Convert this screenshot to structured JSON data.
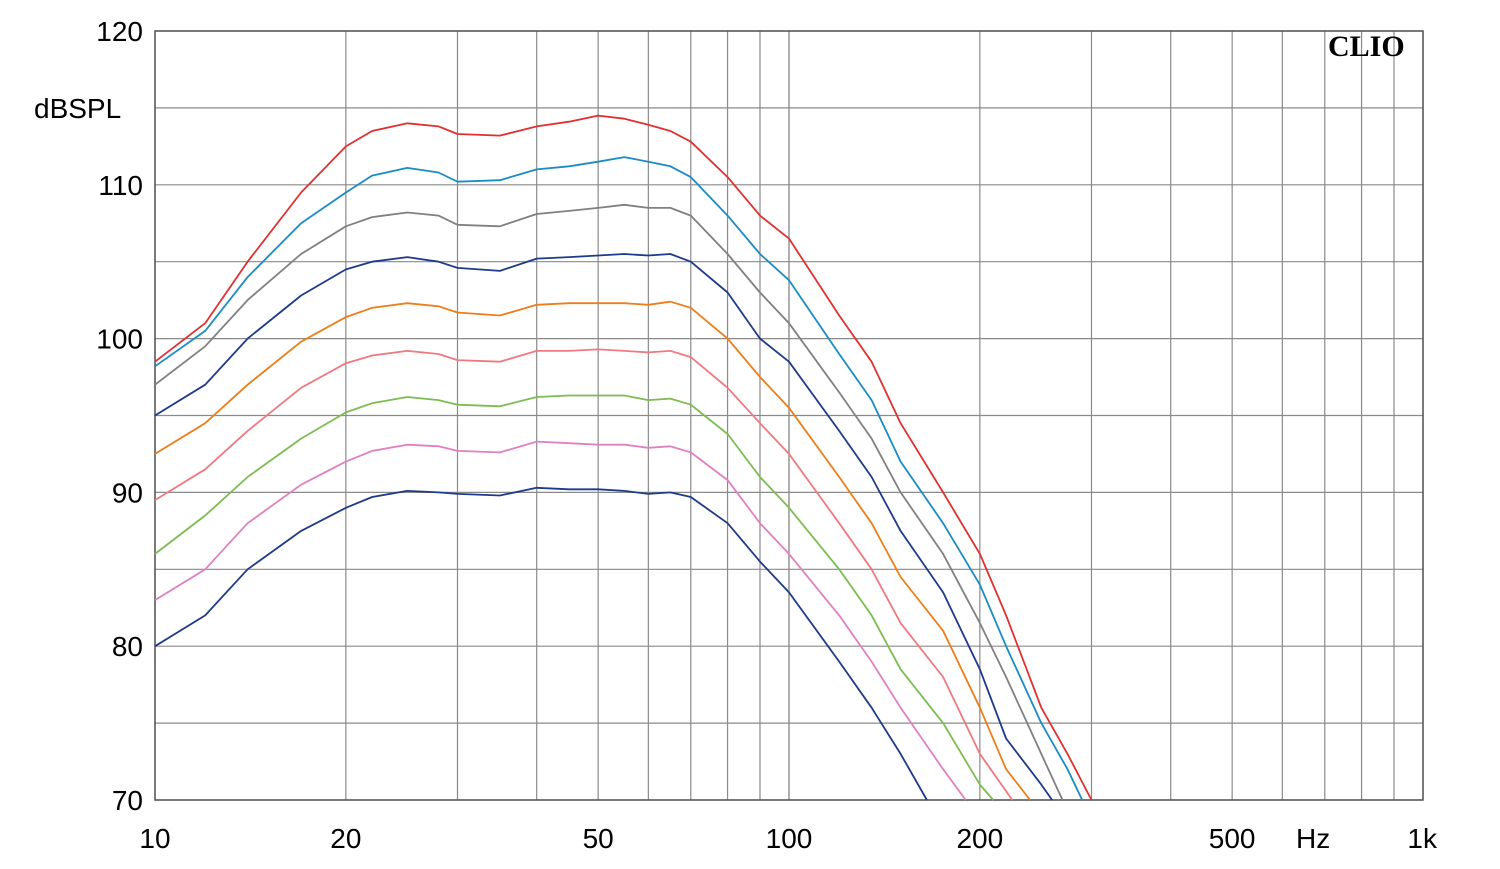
{
  "chart_data": {
    "type": "line",
    "xscale": "log",
    "xlim": [
      10,
      1000
    ],
    "ylim": [
      70,
      120
    ],
    "grid": true,
    "ylabel": "dBSPL",
    "xunit": "Hz",
    "brand": "CLIO",
    "y_ticks": [
      70,
      80,
      90,
      100,
      110,
      120
    ],
    "x_tick_labels": [
      {
        "value": 10,
        "label": "10"
      },
      {
        "value": 20,
        "label": "20"
      },
      {
        "value": 50,
        "label": "50"
      },
      {
        "value": 100,
        "label": "100"
      },
      {
        "value": 200,
        "label": "200"
      },
      {
        "value": 500,
        "label": "500"
      },
      {
        "value": 1000,
        "label": "1k"
      }
    ],
    "series": [
      {
        "color": "#e03030",
        "x": [
          10,
          12,
          14,
          17,
          20,
          22,
          25,
          28,
          30,
          35,
          40,
          45,
          50,
          55,
          60,
          65,
          70,
          80,
          90,
          100,
          120,
          135,
          150,
          175,
          200,
          220,
          250,
          275,
          300
        ],
        "y": [
          98.5,
          101,
          105,
          109.5,
          112.5,
          113.5,
          114,
          113.8,
          113.3,
          113.2,
          113.8,
          114.1,
          114.5,
          114.3,
          113.9,
          113.5,
          112.8,
          110.5,
          108,
          106.5,
          101.5,
          98.5,
          94.5,
          90,
          86,
          82,
          76,
          73,
          70
        ]
      },
      {
        "color": "#1a8cc4",
        "x": [
          10,
          12,
          14,
          17,
          20,
          22,
          25,
          28,
          30,
          35,
          40,
          45,
          50,
          55,
          60,
          65,
          70,
          80,
          90,
          100,
          120,
          135,
          150,
          175,
          200,
          220,
          250,
          275,
          290
        ],
        "y": [
          98.2,
          100.5,
          104,
          107.5,
          109.5,
          110.6,
          111.1,
          110.8,
          110.2,
          110.3,
          111,
          111.2,
          111.5,
          111.8,
          111.5,
          111.2,
          110.5,
          108,
          105.5,
          103.8,
          99,
          96,
          92,
          88,
          84,
          80,
          75,
          72,
          70
        ]
      },
      {
        "color": "#808080",
        "x": [
          10,
          12,
          14,
          17,
          20,
          22,
          25,
          28,
          30,
          35,
          40,
          45,
          50,
          55,
          60,
          65,
          70,
          80,
          90,
          100,
          120,
          135,
          150,
          175,
          200,
          220,
          250,
          270
        ],
        "y": [
          97,
          99.5,
          102.5,
          105.5,
          107.3,
          107.9,
          108.2,
          108,
          107.4,
          107.3,
          108.1,
          108.3,
          108.5,
          108.7,
          108.5,
          108.5,
          108,
          105.5,
          103,
          101,
          96.5,
          93.5,
          90,
          86,
          81.5,
          78,
          73,
          70
        ]
      },
      {
        "color": "#1e3a8a",
        "x": [
          10,
          12,
          14,
          17,
          20,
          22,
          25,
          28,
          30,
          35,
          40,
          45,
          50,
          55,
          60,
          65,
          70,
          80,
          90,
          100,
          120,
          135,
          150,
          175,
          200,
          220,
          250,
          260
        ],
        "y": [
          95,
          97,
          100,
          102.8,
          104.5,
          105,
          105.3,
          105,
          104.6,
          104.4,
          105.2,
          105.3,
          105.4,
          105.5,
          105.4,
          105.5,
          105,
          103,
          100,
          98.5,
          94,
          91,
          87.5,
          83.5,
          78.5,
          74,
          71,
          70
        ]
      },
      {
        "color": "#ee7d1a",
        "x": [
          10,
          12,
          14,
          17,
          20,
          22,
          25,
          28,
          30,
          35,
          40,
          45,
          50,
          55,
          60,
          65,
          70,
          80,
          90,
          100,
          120,
          135,
          150,
          175,
          200,
          220,
          240
        ],
        "y": [
          92.5,
          94.5,
          97,
          99.8,
          101.4,
          102,
          102.3,
          102.1,
          101.7,
          101.5,
          102.2,
          102.3,
          102.3,
          102.3,
          102.2,
          102.4,
          102,
          100,
          97.5,
          95.5,
          91,
          88,
          84.5,
          81,
          76,
          72,
          70
        ]
      },
      {
        "color": "#f07880",
        "x": [
          10,
          12,
          14,
          17,
          20,
          22,
          25,
          28,
          30,
          35,
          40,
          45,
          50,
          55,
          60,
          65,
          70,
          80,
          90,
          100,
          120,
          135,
          150,
          175,
          200,
          225
        ],
        "y": [
          89.5,
          91.5,
          94,
          96.8,
          98.4,
          98.9,
          99.2,
          99,
          98.6,
          98.5,
          99.2,
          99.2,
          99.3,
          99.2,
          99.1,
          99.2,
          98.8,
          96.8,
          94.5,
          92.5,
          88,
          85,
          81.5,
          78,
          73,
          70
        ]
      },
      {
        "color": "#7cbc50",
        "x": [
          10,
          12,
          14,
          17,
          20,
          22,
          25,
          28,
          30,
          35,
          40,
          45,
          50,
          55,
          60,
          65,
          70,
          80,
          90,
          100,
          120,
          135,
          150,
          175,
          200,
          210
        ],
        "y": [
          86,
          88.5,
          91,
          93.5,
          95.2,
          95.8,
          96.2,
          96,
          95.7,
          95.6,
          96.2,
          96.3,
          96.3,
          96.3,
          96,
          96.1,
          95.7,
          93.8,
          91,
          89,
          85,
          82,
          78.5,
          75,
          71,
          70
        ]
      },
      {
        "color": "#e080c0",
        "x": [
          10,
          12,
          14,
          17,
          20,
          22,
          25,
          28,
          30,
          35,
          40,
          45,
          50,
          55,
          60,
          65,
          70,
          80,
          90,
          100,
          120,
          135,
          150,
          175,
          190
        ],
        "y": [
          83,
          85,
          88,
          90.5,
          92,
          92.7,
          93.1,
          93,
          92.7,
          92.6,
          93.3,
          93.2,
          93.1,
          93.1,
          92.9,
          93,
          92.6,
          90.8,
          88,
          86,
          82,
          79,
          76,
          72,
          70
        ]
      },
      {
        "color": "#1e3a8a",
        "x": [
          10,
          12,
          14,
          17,
          20,
          22,
          25,
          28,
          30,
          35,
          40,
          45,
          50,
          55,
          60,
          65,
          70,
          80,
          90,
          100,
          120,
          135,
          150,
          165
        ],
        "y": [
          80,
          82,
          85,
          87.5,
          89,
          89.7,
          90.1,
          90,
          89.9,
          89.8,
          90.3,
          90.2,
          90.2,
          90.1,
          89.9,
          90,
          89.7,
          88,
          85.5,
          83.5,
          79,
          76,
          73,
          70
        ]
      }
    ]
  }
}
